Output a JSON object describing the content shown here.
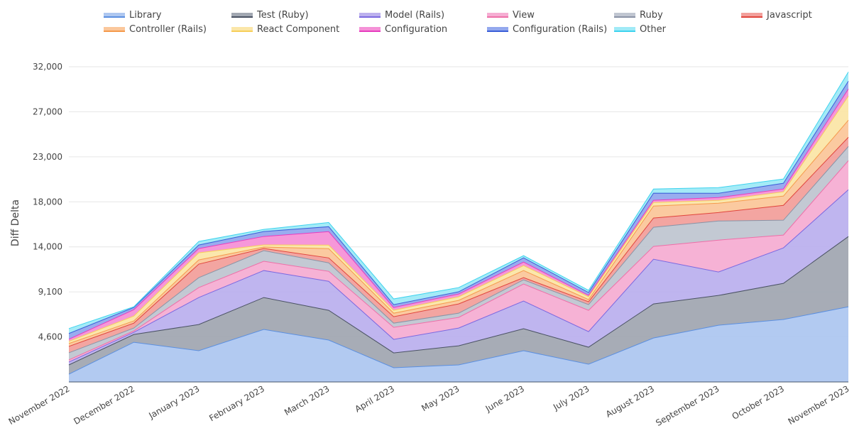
{
  "chart_data": {
    "type": "area",
    "stacked": true,
    "title": "",
    "xlabel": "",
    "ylabel": "Diff Delta",
    "ylim": [
      0,
      32000
    ],
    "grid": true,
    "legend_position": "top",
    "y_ticks": [
      {
        "value": 4571,
        "label": "4,600"
      },
      {
        "value": 9143,
        "label": "9,100"
      },
      {
        "value": 13714,
        "label": "14,000"
      },
      {
        "value": 18286,
        "label": "18,000"
      },
      {
        "value": 22857,
        "label": "23,000"
      },
      {
        "value": 27429,
        "label": "27,000"
      },
      {
        "value": 32000,
        "label": "32,000"
      }
    ],
    "categories": [
      "November 2022",
      "December 2022",
      "January 2023",
      "February 2023",
      "March 2023",
      "April 2023",
      "May 2023",
      "June 2023",
      "July 2023",
      "August 2023",
      "September 2023",
      "October 2023",
      "November 2023"
    ],
    "series": [
      {
        "name": "Library",
        "fill": "#aec7f0",
        "line": "#5b8fe0",
        "values": [
          790,
          4030,
          3170,
          5330,
          4250,
          1440,
          1730,
          3170,
          1800,
          4460,
          5760,
          6340,
          7630
        ]
      },
      {
        "name": "Test (Ruby)",
        "fill": "#a2a8b2",
        "line": "#4a5263",
        "values": [
          940,
          790,
          2660,
          3240,
          3020,
          1510,
          1940,
          2230,
          1730,
          3460,
          3020,
          3670,
          7130
        ]
      },
      {
        "name": "Model (Rails)",
        "fill": "#bcb1ee",
        "line": "#7b68e0",
        "values": [
          290,
          220,
          2740,
          2740,
          2950,
          1370,
          1800,
          2810,
          1580,
          4540,
          2380,
          3600,
          4750
        ]
      },
      {
        "name": "View",
        "fill": "#f6aed3",
        "line": "#ee6fa8",
        "values": [
          220,
          140,
          1010,
          940,
          1010,
          1220,
          1080,
          1730,
          2160,
          1300,
          3240,
          1300,
          2950
        ]
      },
      {
        "name": "Ruby",
        "fill": "#c0c6d1",
        "line": "#8a93a6",
        "values": [
          720,
          290,
          1010,
          1080,
          860,
          430,
          430,
          430,
          580,
          1940,
          1940,
          1510,
          1440
        ]
      },
      {
        "name": "Javascript",
        "fill": "#f2a09c",
        "line": "#e0453c",
        "values": [
          650,
          500,
          1370,
          220,
          500,
          650,
          940,
          220,
          290,
          940,
          860,
          1510,
          940
        ]
      },
      {
        "name": "Controller (Rails)",
        "fill": "#fbc79b",
        "line": "#f59a4c",
        "values": [
          290,
          220,
          430,
          140,
          940,
          360,
          360,
          720,
          220,
          1220,
          940,
          940,
          1730
        ]
      },
      {
        "name": "React Component",
        "fill": "#fbe6a8",
        "line": "#f7cf5a",
        "values": [
          220,
          500,
          720,
          220,
          360,
          290,
          360,
          500,
          290,
          360,
          290,
          430,
          2450
        ]
      },
      {
        "name": "Configuration",
        "fill": "#f591d7",
        "line": "#e63cbf",
        "values": [
          220,
          650,
          430,
          860,
          1370,
          290,
          290,
          360,
          140,
          220,
          290,
          290,
          720
        ]
      },
      {
        "name": "Configuration (Rails)",
        "fill": "#93a8ee",
        "line": "#3b5fd8",
        "values": [
          580,
          220,
          360,
          500,
          500,
          290,
          220,
          430,
          290,
          720,
          430,
          580,
          790
        ]
      },
      {
        "name": "Other",
        "fill": "#9feaf7",
        "line": "#3ed3ee",
        "values": [
          500,
          70,
          360,
          220,
          430,
          580,
          430,
          220,
          220,
          430,
          580,
          430,
          940
        ]
      }
    ]
  }
}
